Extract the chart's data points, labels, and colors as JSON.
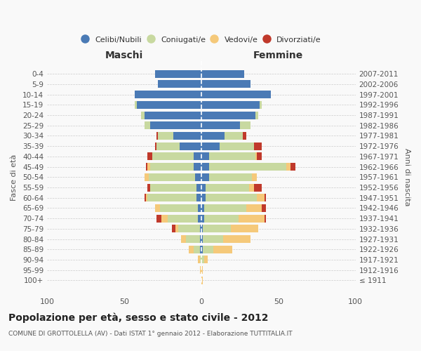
{
  "age_groups": [
    "100+",
    "95-99",
    "90-94",
    "85-89",
    "80-84",
    "75-79",
    "70-74",
    "65-69",
    "60-64",
    "55-59",
    "50-54",
    "45-49",
    "40-44",
    "35-39",
    "30-34",
    "25-29",
    "20-24",
    "15-19",
    "10-14",
    "5-9",
    "0-4"
  ],
  "birth_years": [
    "≤ 1911",
    "1912-1916",
    "1917-1921",
    "1922-1926",
    "1927-1931",
    "1932-1936",
    "1937-1941",
    "1942-1946",
    "1947-1951",
    "1952-1956",
    "1957-1961",
    "1962-1966",
    "1967-1971",
    "1972-1976",
    "1977-1981",
    "1982-1986",
    "1987-1991",
    "1992-1996",
    "1997-2001",
    "2002-2006",
    "2007-2011"
  ],
  "male": {
    "celibi": [
      0,
      0,
      0,
      1,
      1,
      1,
      2,
      2,
      3,
      3,
      4,
      5,
      5,
      14,
      18,
      33,
      37,
      42,
      43,
      28,
      30
    ],
    "coniugati": [
      0,
      0,
      1,
      4,
      9,
      14,
      20,
      25,
      32,
      30,
      30,
      28,
      27,
      15,
      10,
      4,
      2,
      1,
      0,
      0,
      0
    ],
    "vedovi": [
      0,
      1,
      1,
      3,
      3,
      2,
      4,
      3,
      1,
      0,
      3,
      2,
      0,
      0,
      0,
      0,
      0,
      0,
      0,
      0,
      0
    ],
    "divorziati": [
      0,
      0,
      0,
      0,
      0,
      2,
      3,
      0,
      1,
      2,
      0,
      1,
      3,
      1,
      1,
      0,
      0,
      0,
      0,
      0,
      0
    ]
  },
  "female": {
    "nubili": [
      0,
      0,
      0,
      1,
      1,
      1,
      2,
      2,
      3,
      3,
      5,
      5,
      5,
      12,
      15,
      25,
      35,
      38,
      45,
      32,
      28
    ],
    "coniugate": [
      0,
      0,
      2,
      7,
      13,
      18,
      22,
      27,
      33,
      28,
      28,
      50,
      30,
      22,
      12,
      7,
      2,
      1,
      0,
      0,
      0
    ],
    "vedove": [
      1,
      1,
      2,
      12,
      18,
      18,
      17,
      10,
      5,
      3,
      3,
      3,
      1,
      0,
      0,
      0,
      0,
      0,
      0,
      0,
      0
    ],
    "divorziate": [
      0,
      0,
      0,
      0,
      0,
      0,
      1,
      3,
      1,
      5,
      0,
      3,
      3,
      5,
      2,
      0,
      0,
      0,
      0,
      0,
      0
    ]
  },
  "colors": {
    "celibi": "#4a7ab5",
    "coniugati": "#c8d9a0",
    "vedovi": "#f5c97a",
    "divorziati": "#c0392b"
  },
  "legend_labels": [
    "Celibi/Nubili",
    "Coniugati/e",
    "Vedovi/e",
    "Divorziati/e"
  ],
  "title": "Popolazione per età, sesso e stato civile - 2012",
  "subtitle": "COMUNE DI GROTTOLELLA (AV) - Dati ISTAT 1° gennaio 2012 - Elaborazione TUTTITALIA.IT",
  "xlabel_left": "Maschi",
  "xlabel_right": "Femmine",
  "ylabel_left": "Fasce di età",
  "ylabel_right": "Anni di nascita",
  "xlim": 100,
  "bg_color": "#f9f9f9",
  "grid_color": "#cccccc"
}
